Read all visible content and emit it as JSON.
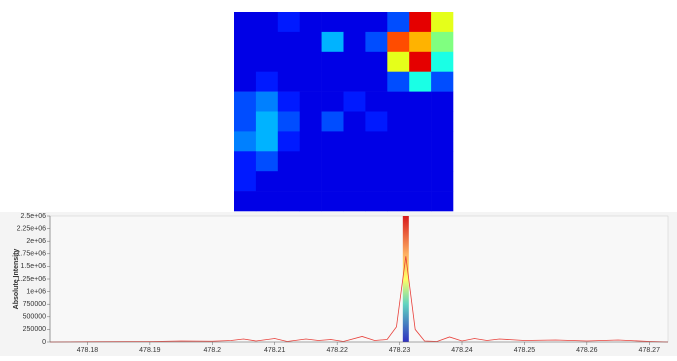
{
  "image_panel": {
    "type": "heatmap",
    "rows": [
      [
        0.1,
        0.1,
        0.15,
        0.1,
        0.1,
        0.1,
        0.1,
        0.2,
        0.9,
        0.6
      ],
      [
        0.1,
        0.1,
        0.1,
        0.1,
        0.3,
        0.1,
        0.2,
        0.8,
        0.7,
        0.5
      ],
      [
        0.1,
        0.1,
        0.1,
        0.1,
        0.1,
        0.1,
        0.1,
        0.6,
        0.9,
        0.4
      ],
      [
        0.1,
        0.15,
        0.1,
        0.1,
        0.1,
        0.1,
        0.1,
        0.2,
        0.4,
        0.2
      ],
      [
        0.2,
        0.25,
        0.15,
        0.1,
        0.1,
        0.15,
        0.1,
        0.1,
        0.1,
        0.1
      ],
      [
        0.2,
        0.3,
        0.2,
        0.1,
        0.2,
        0.1,
        0.15,
        0.1,
        0.1,
        0.1
      ],
      [
        0.25,
        0.3,
        0.15,
        0.1,
        0.1,
        0.1,
        0.1,
        0.1,
        0.1,
        0.1
      ],
      [
        0.15,
        0.2,
        0.1,
        0.1,
        0.1,
        0.1,
        0.1,
        0.1,
        0.1,
        0.1
      ],
      [
        0.15,
        0.1,
        0.1,
        0.1,
        0.1,
        0.1,
        0.1,
        0.1,
        0.1,
        0.1
      ],
      [
        0.1,
        0.1,
        0.1,
        0.1,
        0.1,
        0.1,
        0.1,
        0.1,
        0.1,
        0.1
      ]
    ]
  },
  "chart_data": {
    "type": "line",
    "y_label": "Absolute Intensity",
    "color": "#e8403a",
    "x": [
      478.174,
      478.18,
      478.19,
      478.195,
      478.2,
      478.203,
      478.205,
      478.207,
      478.21,
      478.212,
      478.215,
      478.217,
      478.219,
      478.221,
      478.224,
      478.226,
      478.228,
      478.2295,
      478.231,
      478.2325,
      478.234,
      478.236,
      478.238,
      478.24,
      478.242,
      478.244,
      478.246,
      478.25,
      478.255,
      478.26,
      478.265,
      478.27,
      478.273
    ],
    "values": [
      0,
      5000,
      8000,
      20000,
      15000,
      30000,
      60000,
      20000,
      70000,
      10000,
      60000,
      30000,
      50000,
      10000,
      110000,
      30000,
      50000,
      300000,
      1700000,
      250000,
      20000,
      10000,
      100000,
      20000,
      70000,
      30000,
      60000,
      30000,
      40000,
      20000,
      40000,
      10000,
      0
    ],
    "highlight_mz": 478.231,
    "xlim": [
      478.174,
      478.273
    ],
    "ylim": [
      0,
      2500000
    ],
    "xticks": [
      478.18,
      478.19,
      478.2,
      478.21,
      478.22,
      478.23,
      478.24,
      478.25,
      478.26,
      478.27
    ],
    "yticks": [
      0,
      250000,
      500000,
      750000,
      {
        "value": 1000000,
        "label": "1e+06"
      },
      {
        "value": 1250000,
        "label": "1.25e+06"
      },
      {
        "value": 1500000,
        "label": "1.5e+06"
      },
      {
        "value": 1750000,
        "label": "1.75e+06"
      },
      {
        "value": 2000000,
        "label": "2e+06"
      },
      {
        "value": 2250000,
        "label": "2.25e+06"
      },
      {
        "value": 2500000,
        "label": "2.5e+06"
      }
    ]
  }
}
